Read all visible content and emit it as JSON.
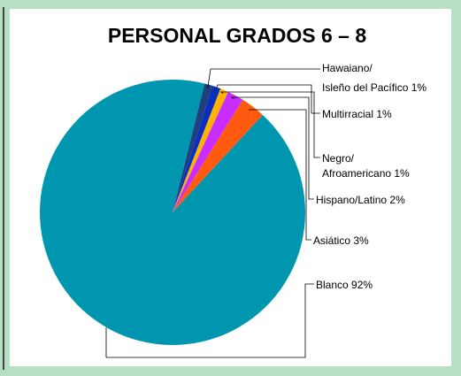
{
  "chart_data": {
    "type": "pie",
    "title": "PERSONAL GRADOS 6 – 8",
    "categories": [
      "Hawaiano/Isleño del Pacífico",
      "Multirracial",
      "Negro/Afroamericano",
      "Hispano/Latino",
      "Asiático",
      "Blanco"
    ],
    "labels": [
      [
        "Hawaiano/",
        "Isleño del Pacífico 1%"
      ],
      [
        "Multirracial 1%"
      ],
      [
        "Negro/",
        "Afroamericano 1%"
      ],
      [
        "Hispano/Latino 2%"
      ],
      [
        "Asiático 3%"
      ],
      [
        "Blanco 92%"
      ]
    ],
    "values": [
      1,
      1,
      1,
      2,
      3,
      92
    ],
    "colors": [
      "#1f3f7f",
      "#0a2fbf",
      "#ffb300",
      "#c92cff",
      "#ff5a0f",
      "#0096b0"
    ]
  }
}
